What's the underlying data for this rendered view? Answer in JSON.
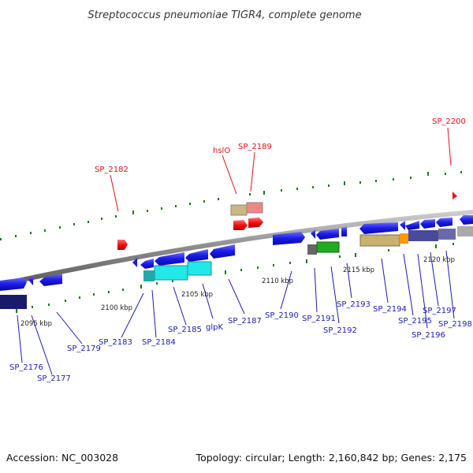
{
  "title": "Streptococcus pneumoniae TIGR4, complete genome",
  "footer": {
    "accession": "Accession: NC_003028",
    "summary": "Topology: circular; Length: 2,160,842 bp; Genes: 2,175"
  },
  "colors": {
    "blue": "#1a1ae6",
    "red": "#ee1111",
    "label_blue": "#1a1ab0",
    "label_red": "#dd1111",
    "backbone": "#9a9a9a",
    "tick": "#1a7a1a"
  },
  "ticks": [
    "2095 kbp",
    "2100 kbp",
    "2105 kbp",
    "2110 kbp",
    "2115 kbp",
    "2120 kbp"
  ],
  "genes": [
    {
      "name": "SP_2176",
      "color": "blue"
    },
    {
      "name": "SP_2177",
      "color": "blue"
    },
    {
      "name": "SP_2179",
      "color": "blue"
    },
    {
      "name": "SP_2182",
      "color": "red"
    },
    {
      "name": "SP_2183",
      "color": "blue"
    },
    {
      "name": "SP_2184",
      "color": "blue"
    },
    {
      "name": "SP_2185",
      "color": "blue"
    },
    {
      "name": "glpK",
      "color": "blue"
    },
    {
      "name": "hslO",
      "color": "red"
    },
    {
      "name": "SP_2189",
      "color": "red"
    },
    {
      "name": "SP_2187",
      "color": "blue"
    },
    {
      "name": "SP_2190",
      "color": "blue"
    },
    {
      "name": "SP_2191",
      "color": "blue"
    },
    {
      "name": "SP_2192",
      "color": "blue"
    },
    {
      "name": "SP_2193",
      "color": "blue"
    },
    {
      "name": "SP_2194",
      "color": "blue"
    },
    {
      "name": "SP_2195",
      "color": "blue"
    },
    {
      "name": "SP_2196",
      "color": "blue"
    },
    {
      "name": "SP_2197",
      "color": "blue"
    },
    {
      "name": "SP_2198",
      "color": "blue"
    },
    {
      "name": "SP_2200",
      "color": "red"
    }
  ]
}
